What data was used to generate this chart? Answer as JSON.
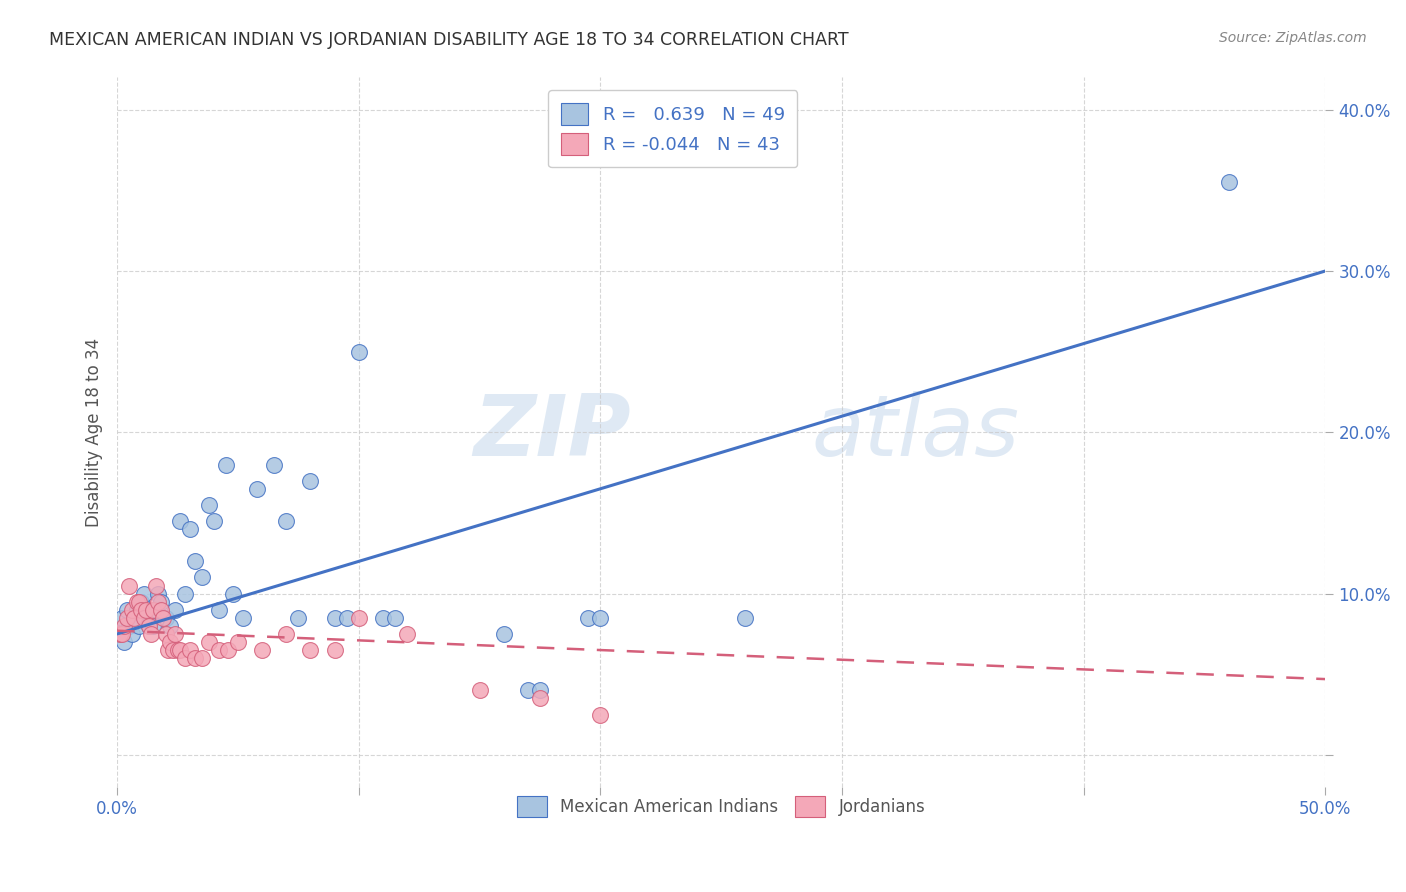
{
  "title": "MEXICAN AMERICAN INDIAN VS JORDANIAN DISABILITY AGE 18 TO 34 CORRELATION CHART",
  "source": "Source: ZipAtlas.com",
  "ylabel": "Disability Age 18 to 34",
  "xlim": [
    0.0,
    0.5
  ],
  "ylim": [
    -0.02,
    0.42
  ],
  "blue_R": 0.639,
  "blue_N": 49,
  "pink_R": -0.044,
  "pink_N": 43,
  "blue_color": "#a8c4e0",
  "pink_color": "#f4a8b8",
  "blue_line_color": "#4472c4",
  "pink_line_color": "#d45f7a",
  "background_color": "#ffffff",
  "watermark_zip": "ZIP",
  "watermark_atlas": "atlas",
  "blue_trend_x": [
    0.0,
    0.5
  ],
  "blue_trend_y": [
    0.075,
    0.3
  ],
  "pink_trend_x": [
    0.0,
    0.5
  ],
  "pink_trend_y": [
    0.077,
    0.047
  ],
  "blue_scatter_x": [
    0.001,
    0.002,
    0.003,
    0.004,
    0.005,
    0.006,
    0.007,
    0.008,
    0.009,
    0.01,
    0.011,
    0.012,
    0.013,
    0.014,
    0.015,
    0.016,
    0.017,
    0.018,
    0.02,
    0.022,
    0.024,
    0.026,
    0.028,
    0.03,
    0.032,
    0.035,
    0.038,
    0.04,
    0.042,
    0.045,
    0.048,
    0.052,
    0.058,
    0.065,
    0.07,
    0.075,
    0.08,
    0.09,
    0.095,
    0.1,
    0.11,
    0.115,
    0.16,
    0.17,
    0.175,
    0.195,
    0.2,
    0.26,
    0.46
  ],
  "blue_scatter_y": [
    0.075,
    0.085,
    0.07,
    0.09,
    0.08,
    0.075,
    0.085,
    0.09,
    0.08,
    0.095,
    0.1,
    0.085,
    0.08,
    0.085,
    0.08,
    0.09,
    0.1,
    0.095,
    0.085,
    0.08,
    0.09,
    0.145,
    0.1,
    0.14,
    0.12,
    0.11,
    0.155,
    0.145,
    0.09,
    0.18,
    0.1,
    0.085,
    0.165,
    0.18,
    0.145,
    0.085,
    0.17,
    0.085,
    0.085,
    0.25,
    0.085,
    0.085,
    0.075,
    0.04,
    0.04,
    0.085,
    0.085,
    0.085,
    0.355
  ],
  "pink_scatter_x": [
    0.001,
    0.002,
    0.003,
    0.004,
    0.005,
    0.006,
    0.007,
    0.008,
    0.009,
    0.01,
    0.011,
    0.012,
    0.013,
    0.014,
    0.015,
    0.016,
    0.017,
    0.018,
    0.019,
    0.02,
    0.021,
    0.022,
    0.023,
    0.024,
    0.025,
    0.026,
    0.028,
    0.03,
    0.032,
    0.035,
    0.038,
    0.042,
    0.046,
    0.05,
    0.06,
    0.07,
    0.08,
    0.09,
    0.1,
    0.12,
    0.15,
    0.175,
    0.2
  ],
  "pink_scatter_y": [
    0.075,
    0.075,
    0.08,
    0.085,
    0.105,
    0.09,
    0.085,
    0.095,
    0.095,
    0.09,
    0.085,
    0.09,
    0.08,
    0.075,
    0.09,
    0.105,
    0.095,
    0.09,
    0.085,
    0.075,
    0.065,
    0.07,
    0.065,
    0.075,
    0.065,
    0.065,
    0.06,
    0.065,
    0.06,
    0.06,
    0.07,
    0.065,
    0.065,
    0.07,
    0.065,
    0.075,
    0.065,
    0.065,
    0.085,
    0.075,
    0.04,
    0.035,
    0.025
  ]
}
